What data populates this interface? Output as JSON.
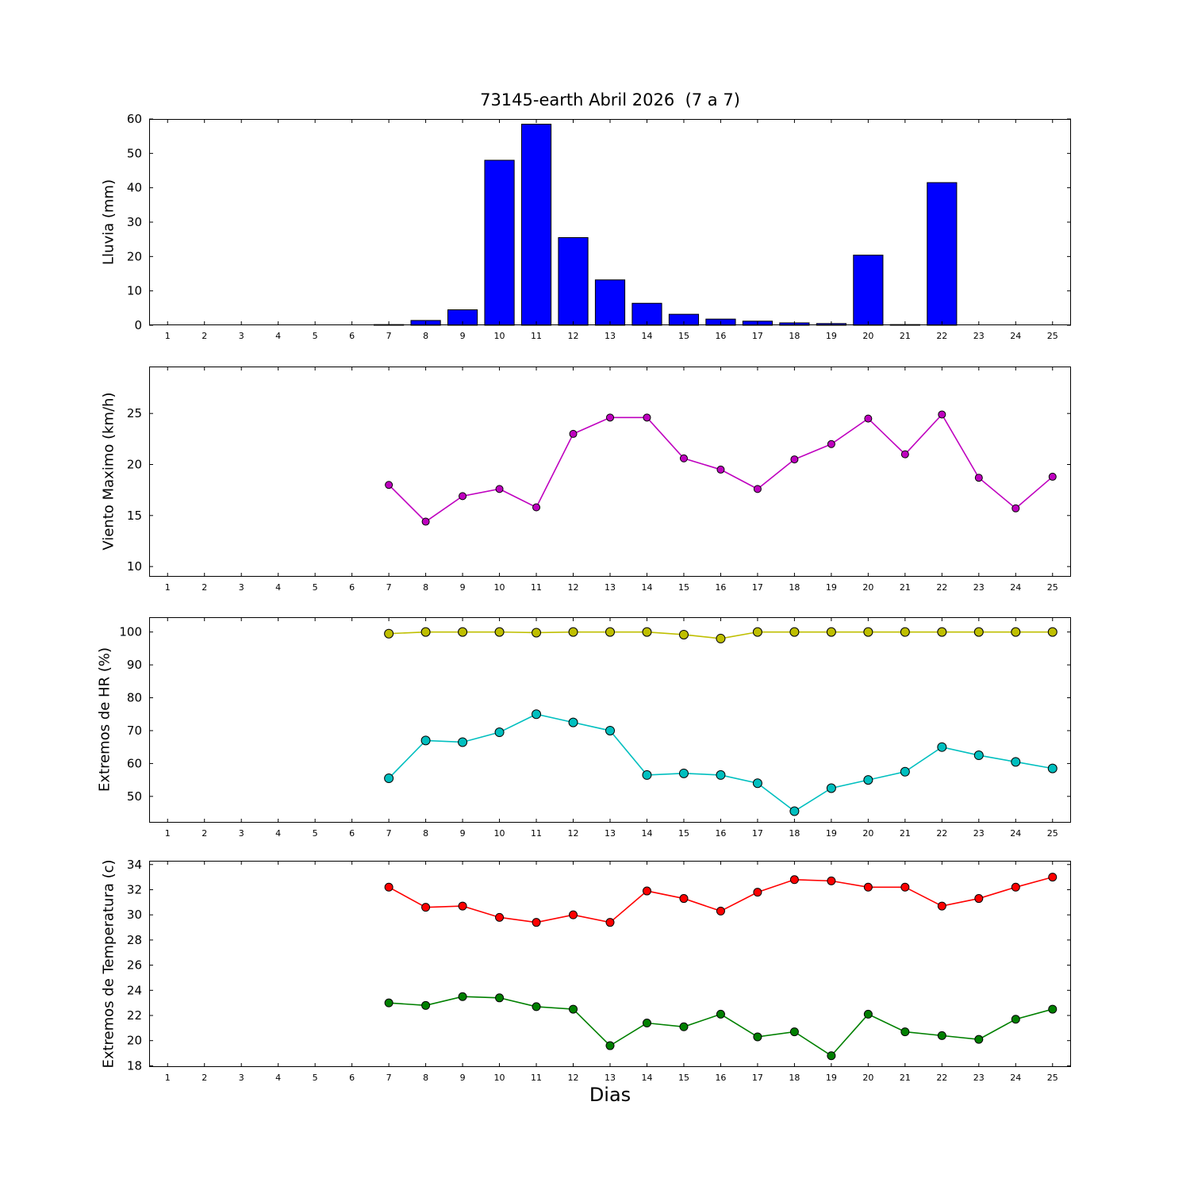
{
  "figure": {
    "title": "73145-earth Abril 2026  (7 a 7)",
    "xlabel": "Dias",
    "background": "#ffffff"
  },
  "chart_data": [
    {
      "type": "bar",
      "ylabel": "Lluvia (mm)",
      "xlim": [
        0.5,
        25.5
      ],
      "ylim": [
        0,
        60
      ],
      "xticks": [
        1,
        2,
        3,
        4,
        5,
        6,
        7,
        8,
        9,
        10,
        11,
        12,
        13,
        14,
        15,
        16,
        17,
        18,
        19,
        20,
        21,
        22,
        23,
        24,
        25
      ],
      "yticks": [
        0,
        10,
        20,
        30,
        40,
        50,
        60
      ],
      "bar_color": "#0000ff",
      "bar_edge": "#000000",
      "bar_width": 0.8,
      "x": [
        1,
        2,
        3,
        4,
        5,
        6,
        7,
        8,
        9,
        10,
        11,
        12,
        13,
        14,
        15,
        16,
        17,
        18,
        19,
        20,
        21,
        22,
        23,
        24,
        25
      ],
      "values": [
        0,
        0,
        0,
        0,
        0,
        0,
        0.2,
        1.4,
        4.5,
        48,
        58.5,
        25.5,
        13.2,
        6.4,
        3.2,
        1.8,
        1.2,
        0.7,
        0.5,
        20.4,
        0.2,
        41.5,
        0,
        0,
        0
      ]
    },
    {
      "type": "line",
      "ylabel": "Viento Maximo (km/h)",
      "xlim": [
        0.5,
        25.5
      ],
      "ylim": [
        9,
        29.6
      ],
      "xticks": [
        1,
        2,
        3,
        4,
        5,
        6,
        7,
        8,
        9,
        10,
        11,
        12,
        13,
        14,
        15,
        16,
        17,
        18,
        19,
        20,
        21,
        22,
        23,
        24,
        25
      ],
      "yticks": [
        10,
        15,
        20,
        25
      ],
      "series": [
        {
          "name": "viento-maximo",
          "color": "#bf00bf",
          "marker_r": 4.5,
          "x": [
            7,
            8,
            9,
            10,
            11,
            12,
            13,
            14,
            15,
            16,
            17,
            18,
            19,
            20,
            21,
            22,
            23,
            24,
            25
          ],
          "values": [
            18.0,
            14.4,
            16.9,
            17.6,
            15.8,
            23.0,
            24.6,
            24.6,
            20.6,
            19.5,
            17.6,
            20.5,
            22.0,
            24.5,
            21.0,
            24.9,
            18.7,
            15.7,
            18.8
          ]
        }
      ]
    },
    {
      "type": "line",
      "ylabel": "Extremos de HR (%)",
      "xlim": [
        0.5,
        25.5
      ],
      "ylim": [
        42,
        104.5
      ],
      "xticks": [
        1,
        2,
        3,
        4,
        5,
        6,
        7,
        8,
        9,
        10,
        11,
        12,
        13,
        14,
        15,
        16,
        17,
        18,
        19,
        20,
        21,
        22,
        23,
        24,
        25
      ],
      "yticks": [
        50,
        60,
        70,
        80,
        90,
        100
      ],
      "series": [
        {
          "name": "hr-maxima",
          "color": "#bfbf00",
          "marker_r": 5.5,
          "x": [
            7,
            8,
            9,
            10,
            11,
            12,
            13,
            14,
            15,
            16,
            17,
            18,
            19,
            20,
            21,
            22,
            23,
            24,
            25
          ],
          "values": [
            99.5,
            100,
            100,
            100,
            99.8,
            100,
            100,
            100,
            99.2,
            98,
            100,
            100,
            100,
            100,
            100,
            100,
            100,
            100,
            100
          ]
        },
        {
          "name": "hr-minima",
          "color": "#00bfbf",
          "marker_r": 5.5,
          "x": [
            7,
            8,
            9,
            10,
            11,
            12,
            13,
            14,
            15,
            16,
            17,
            18,
            19,
            20,
            21,
            22,
            23,
            24,
            25
          ],
          "values": [
            55.5,
            67,
            66.5,
            69.5,
            75,
            72.5,
            70,
            56.5,
            57,
            56.5,
            54,
            45.5,
            52.5,
            55,
            57.5,
            65,
            62.5,
            60.5,
            58.5
          ]
        }
      ]
    },
    {
      "type": "line",
      "ylabel": "Extremos de Temperatura (c)",
      "xlim": [
        0.5,
        25.5
      ],
      "ylim": [
        17.9,
        34.3
      ],
      "xticks": [
        1,
        2,
        3,
        4,
        5,
        6,
        7,
        8,
        9,
        10,
        11,
        12,
        13,
        14,
        15,
        16,
        17,
        18,
        19,
        20,
        21,
        22,
        23,
        24,
        25
      ],
      "yticks": [
        18,
        20,
        22,
        24,
        26,
        28,
        30,
        32,
        34
      ],
      "series": [
        {
          "name": "temperatura-maxima",
          "color": "#ff0000",
          "marker_r": 5,
          "x": [
            7,
            8,
            9,
            10,
            11,
            12,
            13,
            14,
            15,
            16,
            17,
            18,
            19,
            20,
            21,
            22,
            23,
            24,
            25
          ],
          "values": [
            32.2,
            30.6,
            30.7,
            29.8,
            29.4,
            30.0,
            29.4,
            31.9,
            31.3,
            30.3,
            31.8,
            32.8,
            32.7,
            32.2,
            32.2,
            30.7,
            31.3,
            32.2,
            33.0
          ]
        },
        {
          "name": "temperatura-minima",
          "color": "#008000",
          "marker_r": 5,
          "x": [
            7,
            8,
            9,
            10,
            11,
            12,
            13,
            14,
            15,
            16,
            17,
            18,
            19,
            20,
            21,
            22,
            23,
            24,
            25
          ],
          "values": [
            23.0,
            22.8,
            23.5,
            23.4,
            22.7,
            22.5,
            19.6,
            21.4,
            21.1,
            22.1,
            20.3,
            20.7,
            18.8,
            22.1,
            20.7,
            20.4,
            20.1,
            21.7,
            22.5
          ]
        }
      ]
    }
  ]
}
